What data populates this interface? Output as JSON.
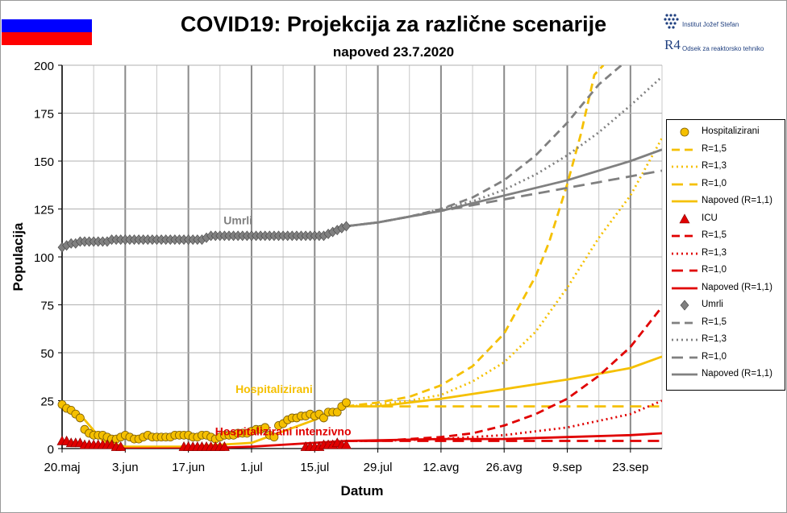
{
  "header": {
    "title": "COVID19: Projekcija za različne scenarije",
    "subtitle": "napoved 23.7.2020",
    "institute_line1": "Institut Jožef Stefan",
    "institute_line2": "Odsek za reaktorsko tehniko",
    "r4_logo_text": "R4",
    "flag": {
      "name": "slovenia-flag",
      "colors": [
        "#ffffff",
        "#0000ff",
        "#ff0000"
      ]
    }
  },
  "chart_data": {
    "type": "line",
    "title": "COVID19: Projekcija za različne scenarije",
    "subtitle": "napoved 23.7.2020",
    "xlabel": "Datum",
    "ylabel": "Populacija",
    "x_tick_labels": [
      "20.maj",
      "3.jun",
      "17.jun",
      "1.jul",
      "15.jul",
      "29.jul",
      "12.avg",
      "26.avg",
      "9.sep",
      "23.sep"
    ],
    "x_tick_dates": [
      "2020-05-20",
      "2020-06-03",
      "2020-06-17",
      "2020-07-01",
      "2020-07-15",
      "2020-07-29",
      "2020-08-12",
      "2020-08-26",
      "2020-09-09",
      "2020-09-23"
    ],
    "x_range": [
      "2020-05-20",
      "2020-09-30"
    ],
    "ylim": [
      0,
      200
    ],
    "y_ticks": [
      0,
      25,
      50,
      75,
      100,
      125,
      150,
      175,
      200
    ],
    "grid": {
      "horizontal": true,
      "vertical_weekly": true
    },
    "annotations": [
      {
        "text": "Umrli",
        "color": "#808080",
        "x": "2020-06-28",
        "y": 117
      },
      {
        "text": "Hospitalizirani",
        "color": "#f5c000",
        "x": "2020-07-06",
        "y": 29
      },
      {
        "text": "Hospitalizirani intenzivno",
        "color": "#e00000",
        "x": "2020-07-08",
        "y": 7
      }
    ],
    "colors": {
      "hosp": "#f5c000",
      "hosp_marker": "#f5c000",
      "icu": "#e00000",
      "deaths": "#808080"
    },
    "series": [
      {
        "name": "Hospitalizirani",
        "kind": "observed",
        "color": "#f5c000",
        "marker": "circle",
        "x": [
          "2020-05-20",
          "2020-05-21",
          "2020-05-22",
          "2020-05-23",
          "2020-05-24",
          "2020-05-25",
          "2020-05-26",
          "2020-05-27",
          "2020-05-28",
          "2020-05-29",
          "2020-05-30",
          "2020-05-31",
          "2020-06-01",
          "2020-06-02",
          "2020-06-03",
          "2020-06-04",
          "2020-06-05",
          "2020-06-06",
          "2020-06-07",
          "2020-06-08",
          "2020-06-09",
          "2020-06-10",
          "2020-06-11",
          "2020-06-12",
          "2020-06-13",
          "2020-06-14",
          "2020-06-15",
          "2020-06-16",
          "2020-06-17",
          "2020-06-18",
          "2020-06-19",
          "2020-06-20",
          "2020-06-21",
          "2020-06-22",
          "2020-06-23",
          "2020-06-24",
          "2020-06-25",
          "2020-06-26",
          "2020-06-27",
          "2020-06-28",
          "2020-06-29",
          "2020-06-30",
          "2020-07-01",
          "2020-07-02",
          "2020-07-03",
          "2020-07-04",
          "2020-07-05",
          "2020-07-06",
          "2020-07-07",
          "2020-07-08",
          "2020-07-09",
          "2020-07-10",
          "2020-07-11",
          "2020-07-12",
          "2020-07-13",
          "2020-07-14",
          "2020-07-15",
          "2020-07-16",
          "2020-07-17",
          "2020-07-18",
          "2020-07-19",
          "2020-07-20",
          "2020-07-21",
          "2020-07-22"
        ],
        "values": [
          23,
          21,
          20,
          18,
          16,
          10,
          8,
          7,
          7,
          7,
          6,
          5,
          5,
          6,
          7,
          6,
          5,
          5,
          6,
          7,
          6,
          6,
          6,
          6,
          6,
          7,
          7,
          7,
          7,
          6,
          6,
          7,
          7,
          6,
          5,
          6,
          7,
          7,
          7,
          8,
          8,
          8,
          9,
          10,
          10,
          11,
          7,
          6,
          12,
          13,
          15,
          16,
          16,
          17,
          17,
          18,
          17,
          18,
          16,
          19,
          19,
          19,
          22,
          24
        ]
      },
      {
        "name": "R=1,5",
        "group": "hosp",
        "color": "#f5c000",
        "dash": "long",
        "x": [
          "2020-07-22",
          "2020-07-29",
          "2020-08-05",
          "2020-08-12",
          "2020-08-19",
          "2020-08-26",
          "2020-09-02",
          "2020-09-05",
          "2020-09-09",
          "2020-09-12",
          "2020-09-15",
          "2020-09-17"
        ],
        "values": [
          22,
          24,
          27,
          33,
          43,
          60,
          90,
          108,
          138,
          164,
          195,
          200
        ]
      },
      {
        "name": "R=1,3",
        "group": "hosp",
        "color": "#f5c000",
        "dash": "dotted",
        "x": [
          "2020-07-22",
          "2020-07-29",
          "2020-08-05",
          "2020-08-12",
          "2020-08-19",
          "2020-08-26",
          "2020-09-02",
          "2020-09-09",
          "2020-09-16",
          "2020-09-23",
          "2020-09-30"
        ],
        "values": [
          22,
          23,
          25,
          28,
          35,
          45,
          61,
          84,
          110,
          132,
          162
        ]
      },
      {
        "name": "R=1,0",
        "group": "hosp",
        "color": "#f5c000",
        "dash": "dashed",
        "x": [
          "2020-07-22",
          "2020-07-29",
          "2020-08-12",
          "2020-08-26",
          "2020-09-09",
          "2020-09-23",
          "2020-09-30"
        ],
        "values": [
          22,
          22,
          22,
          22,
          22,
          22,
          22
        ]
      },
      {
        "name": "Napoved (R=1,1)",
        "group": "hosp",
        "color": "#f5c000",
        "dash": "solid",
        "x": [
          "2020-05-20",
          "2020-05-25",
          "2020-05-29",
          "2020-06-03",
          "2020-06-17",
          "2020-07-01",
          "2020-07-08",
          "2020-07-15",
          "2020-07-22",
          "2020-07-29",
          "2020-08-12",
          "2020-08-26",
          "2020-09-09",
          "2020-09-23",
          "2020-09-30"
        ],
        "values": [
          23,
          15,
          4,
          1,
          1,
          3,
          9,
          15,
          22,
          22,
          26,
          31,
          36,
          42,
          48
        ]
      },
      {
        "name": "ICU",
        "kind": "observed",
        "color": "#e00000",
        "marker": "triangle",
        "x": [
          "2020-05-20",
          "2020-05-21",
          "2020-05-22",
          "2020-05-23",
          "2020-05-24",
          "2020-05-25",
          "2020-05-26",
          "2020-05-27",
          "2020-05-28",
          "2020-05-29",
          "2020-05-30",
          "2020-05-31",
          "2020-06-01",
          "2020-06-02",
          "2020-06-16",
          "2020-06-17",
          "2020-06-18",
          "2020-06-19",
          "2020-06-20",
          "2020-06-21",
          "2020-06-22",
          "2020-06-23",
          "2020-06-24",
          "2020-06-25",
          "2020-07-13",
          "2020-07-14",
          "2020-07-15",
          "2020-07-16",
          "2020-07-17",
          "2020-07-18",
          "2020-07-19",
          "2020-07-20",
          "2020-07-21",
          "2020-07-22"
        ],
        "values": [
          4,
          4,
          3,
          3,
          3,
          2,
          2,
          2,
          2,
          2,
          2,
          2,
          1,
          1,
          1,
          1,
          1,
          1,
          1,
          1,
          1,
          1,
          1,
          1,
          1,
          1,
          1,
          1,
          2,
          2,
          2,
          3,
          2,
          2
        ]
      },
      {
        "name": "R=1,5",
        "group": "icu",
        "color": "#e00000",
        "dash": "long",
        "x": [
          "2020-07-22",
          "2020-07-29",
          "2020-08-05",
          "2020-08-12",
          "2020-08-19",
          "2020-08-26",
          "2020-09-02",
          "2020-09-09",
          "2020-09-16",
          "2020-09-23",
          "2020-09-30"
        ],
        "values": [
          4,
          4,
          5,
          6,
          8,
          12,
          18,
          26,
          38,
          53,
          74
        ]
      },
      {
        "name": "R=1,3",
        "group": "icu",
        "color": "#e00000",
        "dash": "dotted",
        "x": [
          "2020-07-22",
          "2020-07-29",
          "2020-08-12",
          "2020-08-26",
          "2020-09-09",
          "2020-09-23",
          "2020-09-30"
        ],
        "values": [
          4,
          4,
          5,
          7,
          11,
          18,
          25
        ]
      },
      {
        "name": "R=1,0",
        "group": "icu",
        "color": "#e00000",
        "dash": "dashed",
        "x": [
          "2020-07-22",
          "2020-08-12",
          "2020-08-26",
          "2020-09-09",
          "2020-09-30"
        ],
        "values": [
          4,
          4,
          4,
          4,
          4
        ]
      },
      {
        "name": "Napoved (R=1,1)",
        "group": "icu",
        "color": "#e00000",
        "dash": "solid",
        "x": [
          "2020-05-20",
          "2020-05-26",
          "2020-06-03",
          "2020-06-17",
          "2020-07-01",
          "2020-07-15",
          "2020-07-22",
          "2020-08-12",
          "2020-08-26",
          "2020-09-09",
          "2020-09-23",
          "2020-09-30"
        ],
        "values": [
          3,
          2,
          0,
          0,
          1,
          3,
          4,
          5,
          5,
          6,
          7,
          8
        ]
      },
      {
        "name": "Umrli",
        "kind": "observed",
        "color": "#808080",
        "marker": "diamond",
        "x": [
          "2020-05-20",
          "2020-05-21",
          "2020-05-22",
          "2020-05-23",
          "2020-05-24",
          "2020-05-25",
          "2020-05-26",
          "2020-05-27",
          "2020-05-28",
          "2020-05-29",
          "2020-05-30",
          "2020-05-31",
          "2020-06-01",
          "2020-06-02",
          "2020-06-03",
          "2020-06-04",
          "2020-06-05",
          "2020-06-06",
          "2020-06-07",
          "2020-06-08",
          "2020-06-09",
          "2020-06-10",
          "2020-06-11",
          "2020-06-12",
          "2020-06-13",
          "2020-06-14",
          "2020-06-15",
          "2020-06-16",
          "2020-06-17",
          "2020-06-18",
          "2020-06-19",
          "2020-06-20",
          "2020-06-21",
          "2020-06-22",
          "2020-06-23",
          "2020-06-24",
          "2020-06-25",
          "2020-06-26",
          "2020-06-27",
          "2020-06-28",
          "2020-06-29",
          "2020-06-30",
          "2020-07-01",
          "2020-07-02",
          "2020-07-03",
          "2020-07-04",
          "2020-07-05",
          "2020-07-06",
          "2020-07-07",
          "2020-07-08",
          "2020-07-09",
          "2020-07-10",
          "2020-07-11",
          "2020-07-12",
          "2020-07-13",
          "2020-07-14",
          "2020-07-15",
          "2020-07-16",
          "2020-07-17",
          "2020-07-18",
          "2020-07-19",
          "2020-07-20",
          "2020-07-21",
          "2020-07-22"
        ],
        "values": [
          105,
          106,
          107,
          107,
          108,
          108,
          108,
          108,
          108,
          108,
          108,
          109,
          109,
          109,
          109,
          109,
          109,
          109,
          109,
          109,
          109,
          109,
          109,
          109,
          109,
          109,
          109,
          109,
          109,
          109,
          109,
          109,
          110,
          111,
          111,
          111,
          111,
          111,
          111,
          111,
          111,
          111,
          111,
          111,
          111,
          111,
          111,
          111,
          111,
          111,
          111,
          111,
          111,
          111,
          111,
          111,
          111,
          111,
          111,
          112,
          113,
          114,
          115,
          116
        ]
      },
      {
        "name": "R=1,5",
        "group": "deaths",
        "color": "#808080",
        "dash": "long",
        "x": [
          "2020-07-22",
          "2020-07-29",
          "2020-08-05",
          "2020-08-12",
          "2020-08-19",
          "2020-08-26",
          "2020-09-02",
          "2020-09-09",
          "2020-09-16",
          "2020-09-21"
        ],
        "values": [
          116,
          118,
          121,
          125,
          131,
          140,
          153,
          170,
          190,
          200
        ]
      },
      {
        "name": "R=1,3",
        "group": "deaths",
        "color": "#808080",
        "dash": "dotted",
        "x": [
          "2020-07-22",
          "2020-07-29",
          "2020-08-05",
          "2020-08-12",
          "2020-08-19",
          "2020-08-26",
          "2020-09-02",
          "2020-09-09",
          "2020-09-16",
          "2020-09-23",
          "2020-09-30"
        ],
        "values": [
          116,
          118,
          121,
          125,
          129,
          135,
          143,
          153,
          165,
          179,
          194
        ]
      },
      {
        "name": "R=1,0",
        "group": "deaths",
        "color": "#808080",
        "dash": "dashed",
        "x": [
          "2020-07-22",
          "2020-07-29",
          "2020-08-05",
          "2020-08-12",
          "2020-08-19",
          "2020-08-26",
          "2020-09-02",
          "2020-09-09",
          "2020-09-16",
          "2020-09-23",
          "2020-09-30"
        ],
        "values": [
          116,
          118,
          121,
          124,
          127,
          130,
          133,
          136,
          139,
          142,
          145
        ]
      },
      {
        "name": "Napoved (R=1,1)",
        "group": "deaths",
        "color": "#808080",
        "dash": "solid",
        "x": [
          "2020-07-22",
          "2020-07-29",
          "2020-08-05",
          "2020-08-12",
          "2020-08-19",
          "2020-08-26",
          "2020-09-02",
          "2020-09-09",
          "2020-09-16",
          "2020-09-23",
          "2020-09-30"
        ],
        "values": [
          116,
          118,
          121,
          124,
          128,
          132,
          136,
          140,
          145,
          150,
          156
        ]
      }
    ],
    "legend": {
      "placement": "right",
      "entries": [
        {
          "label": "Hospitalizirani",
          "color": "#f5c000",
          "symbol": "circle"
        },
        {
          "label": "R=1,5",
          "color": "#f5c000",
          "symbol": "long"
        },
        {
          "label": "R=1,3",
          "color": "#f5c000",
          "symbol": "dotted"
        },
        {
          "label": "R=1,0",
          "color": "#f5c000",
          "symbol": "dashed"
        },
        {
          "label": "Napoved (R=1,1)",
          "color": "#f5c000",
          "symbol": "solid"
        },
        {
          "label": "ICU",
          "color": "#e00000",
          "symbol": "triangle"
        },
        {
          "label": "R=1,5",
          "color": "#e00000",
          "symbol": "long"
        },
        {
          "label": "R=1,3",
          "color": "#e00000",
          "symbol": "dotted"
        },
        {
          "label": "R=1,0",
          "color": "#e00000",
          "symbol": "dashed"
        },
        {
          "label": "Napoved (R=1,1)",
          "color": "#e00000",
          "symbol": "solid"
        },
        {
          "label": "Umrli",
          "color": "#808080",
          "symbol": "diamond"
        },
        {
          "label": "R=1,5",
          "color": "#808080",
          "symbol": "long"
        },
        {
          "label": "R=1,3",
          "color": "#808080",
          "symbol": "dotted"
        },
        {
          "label": "R=1,0",
          "color": "#808080",
          "symbol": "dashed"
        },
        {
          "label": "Napoved (R=1,1)",
          "color": "#808080",
          "symbol": "solid"
        }
      ]
    }
  }
}
